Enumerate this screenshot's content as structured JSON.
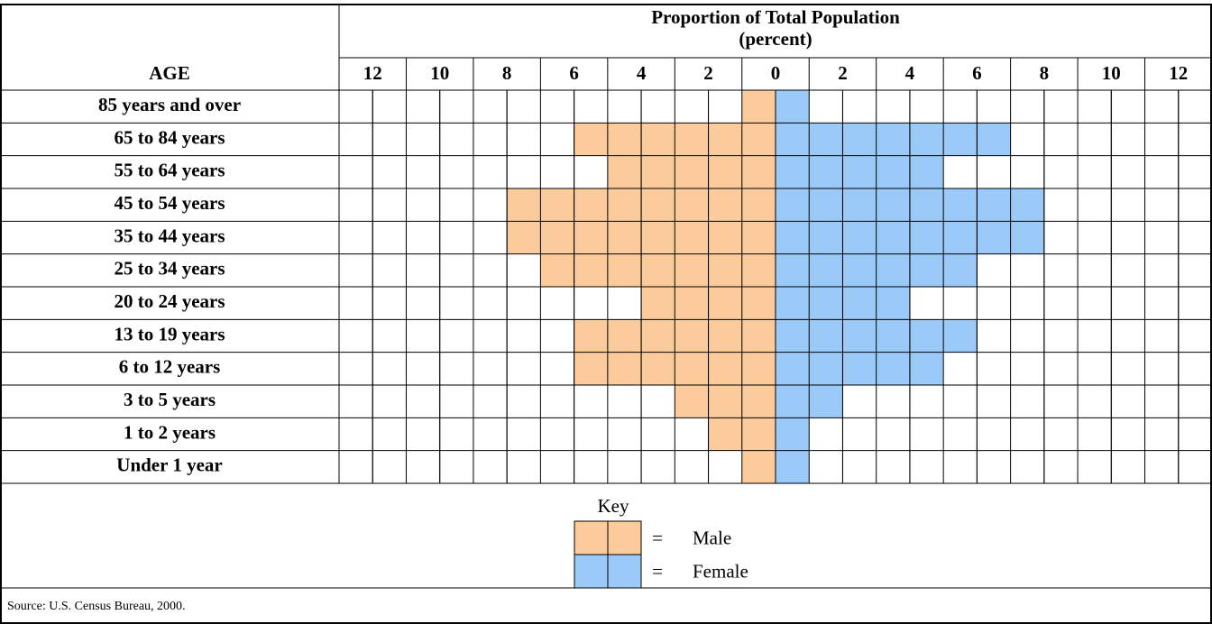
{
  "chart_data": {
    "type": "pyramid",
    "title": "Proportion of Total Population",
    "subtitle": "(percent)",
    "category_header": "AGE",
    "categories": [
      "85 years and over",
      "65 to 84 years",
      "55 to 64 years",
      "45 to 54 years",
      "35 to 44 years",
      "25 to 34 years",
      "20 to 24 years",
      "13 to 19 years",
      "6 to 12 years",
      "3 to 5 years",
      "1 to 2 years",
      "Under 1 year"
    ],
    "series": [
      {
        "name": "Male",
        "color": "#fbcb9b",
        "side": "left",
        "values": [
          1,
          6,
          5,
          8,
          8,
          7,
          4,
          6,
          6,
          3,
          2,
          1
        ]
      },
      {
        "name": "Female",
        "color": "#9ccaf8",
        "side": "right",
        "values": [
          1,
          7,
          5,
          8,
          8,
          6,
          4,
          6,
          5,
          2,
          1,
          1
        ]
      }
    ],
    "xlim": [
      -13,
      13
    ],
    "xticks": [
      {
        "value": -12,
        "label": "12"
      },
      {
        "value": -10,
        "label": "10"
      },
      {
        "value": -8,
        "label": "8"
      },
      {
        "value": -6,
        "label": "6"
      },
      {
        "value": -4,
        "label": "4"
      },
      {
        "value": -2,
        "label": "2"
      },
      0,
      2,
      4,
      6,
      8,
      10,
      12
    ],
    "legend_title": "Key",
    "legend_symbol": "=",
    "source": "Source: U.S. Census Bureau, 2000."
  }
}
